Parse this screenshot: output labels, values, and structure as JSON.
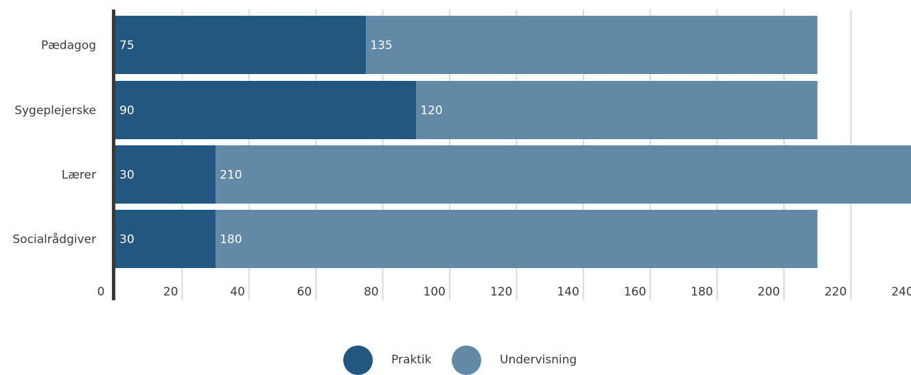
{
  "chart_data": {
    "type": "bar",
    "orientation": "horizontal",
    "stacked": true,
    "categories": [
      "Pædagog",
      "Sygeplejerske",
      "Lærer",
      "Socialrådgiver"
    ],
    "series": [
      {
        "name": "Praktik",
        "values": [
          75,
          90,
          30,
          30
        ],
        "color": "#22577f"
      },
      {
        "name": "Undervisning",
        "values": [
          135,
          120,
          210,
          180
        ],
        "color": "#628aa6"
      }
    ],
    "xticks": [
      "0",
      "20",
      "40",
      "60",
      "80",
      "100",
      "120",
      "140",
      "160",
      "180",
      "200",
      "220",
      "240"
    ],
    "xlim": [
      0,
      240
    ],
    "grid": true,
    "legend_position": "bottom-center",
    "title": "",
    "xlabel": "",
    "ylabel": ""
  }
}
